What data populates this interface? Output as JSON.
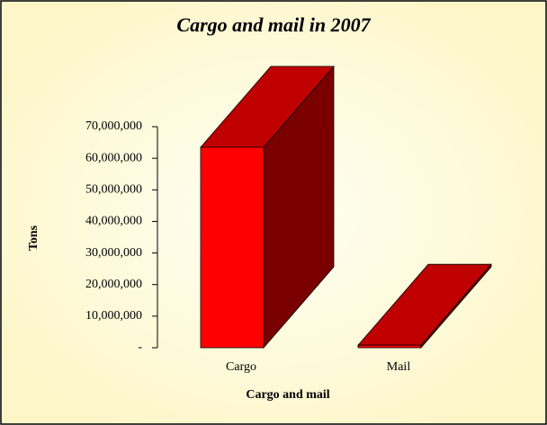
{
  "chart_data": {
    "type": "bar3d",
    "title": "Cargo and mail in 2007",
    "x_label": "Cargo and mail",
    "y_label": "Tons",
    "categories": [
      "Cargo",
      "Mail"
    ],
    "values": [
      63500000,
      800000
    ],
    "colors": {
      "front": "#ff0000",
      "top": "#c00000",
      "side": "#7a0000"
    },
    "ylim": [
      0,
      70000000
    ],
    "yticks": [
      {
        "value": 0,
        "label": "-"
      },
      {
        "value": 10000000,
        "label": "10,000,000"
      },
      {
        "value": 20000000,
        "label": "20,000,000"
      },
      {
        "value": 30000000,
        "label": "30,000,000"
      },
      {
        "value": 40000000,
        "label": "40,000,000"
      },
      {
        "value": 50000000,
        "label": "50,000,000"
      },
      {
        "value": 60000000,
        "label": "60,000,000"
      },
      {
        "value": 70000000,
        "label": "70,000,000"
      }
    ]
  }
}
